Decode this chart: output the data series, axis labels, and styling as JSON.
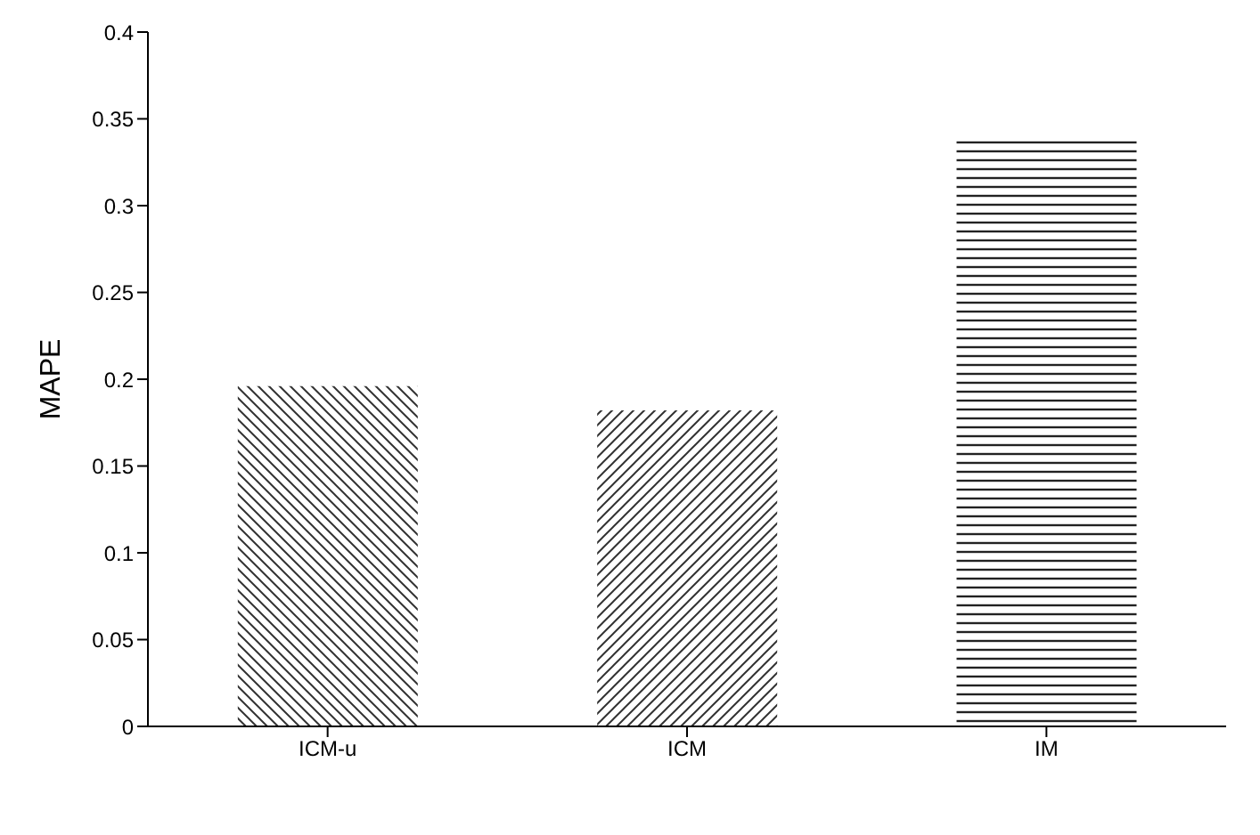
{
  "chart_data": {
    "type": "bar",
    "ylabel": "MAPE",
    "categories": [
      "ICM-u",
      "ICM",
      "IM"
    ],
    "values": [
      0.196,
      0.182,
      0.34
    ],
    "colors": [
      "#333333",
      "#333333",
      "#222222"
    ],
    "ylim": [
      0,
      0.4
    ],
    "yticks": [
      0,
      0.05,
      0.1,
      0.15,
      0.2,
      0.25,
      0.3,
      0.35,
      0.4
    ],
    "grid": false,
    "legend": false
  }
}
